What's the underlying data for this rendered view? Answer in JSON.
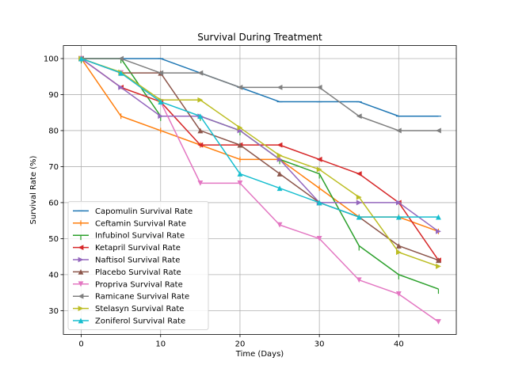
{
  "chart_data": {
    "type": "line",
    "title": "Survival During Treatment",
    "xlabel": "Time (Days)",
    "ylabel": "Survival Rate (%)",
    "xlim": [
      -2.25,
      47.25
    ],
    "ylim": [
      23.4,
      103.6
    ],
    "x_ticks": [
      0,
      10,
      20,
      30,
      40
    ],
    "y_ticks": [
      30,
      40,
      50,
      60,
      70,
      80,
      90,
      100
    ],
    "grid": true,
    "legend_position": "lower-left",
    "x": [
      0,
      5,
      10,
      15,
      20,
      25,
      30,
      35,
      40,
      45
    ],
    "series": [
      {
        "name": "Capomulin Survival Rate",
        "color": "#1f77b4",
        "marker": "hline",
        "values": [
          100,
          100,
          100,
          96,
          92,
          88,
          88,
          88,
          84,
          84
        ]
      },
      {
        "name": "Ceftamin Survival Rate",
        "color": "#ff7f0e",
        "marker": "vline",
        "values": [
          100,
          84,
          80,
          76,
          72,
          72,
          64,
          56,
          56,
          52
        ]
      },
      {
        "name": "Infubinol Survival Rate",
        "color": "#2ca02c",
        "marker": "tickdown",
        "values": [
          100,
          100,
          84,
          84,
          80,
          72,
          68,
          48,
          40,
          36
        ]
      },
      {
        "name": "Ketapril Survival Rate",
        "color": "#d62728",
        "marker": "triangle-left",
        "values": [
          100,
          92,
          88,
          76,
          76,
          76,
          72,
          68,
          60,
          44
        ]
      },
      {
        "name": "Naftisol Survival Rate",
        "color": "#9467bd",
        "marker": "triangle-right",
        "values": [
          100,
          92,
          84,
          84,
          80,
          72,
          60,
          60,
          60,
          52
        ]
      },
      {
        "name": "Placebo Survival Rate",
        "color": "#8c564b",
        "marker": "triangle-up",
        "values": [
          100,
          96,
          96,
          80,
          76,
          68,
          60,
          56,
          48,
          44
        ]
      },
      {
        "name": "Propriva Survival Rate",
        "color": "#e377c2",
        "marker": "triangle-down",
        "values": [
          100,
          96,
          88,
          65.4,
          65.4,
          53.8,
          50,
          38.5,
          34.6,
          26.9
        ]
      },
      {
        "name": "Ramicane Survival Rate",
        "color": "#7f7f7f",
        "marker": "triangle-left",
        "values": [
          100,
          100,
          96,
          96,
          92,
          92,
          92,
          84,
          80,
          80
        ]
      },
      {
        "name": "Stelasyn Survival Rate",
        "color": "#bcbd22",
        "marker": "triangle-right",
        "values": [
          100,
          96.2,
          88.5,
          88.5,
          80.8,
          73.1,
          69.2,
          61.5,
          46.2,
          42.3
        ]
      },
      {
        "name": "Zoniferol Survival Rate",
        "color": "#17becf",
        "marker": "triangle-up",
        "values": [
          100,
          96,
          88,
          84,
          68,
          64,
          60,
          56,
          56,
          56
        ]
      }
    ]
  }
}
